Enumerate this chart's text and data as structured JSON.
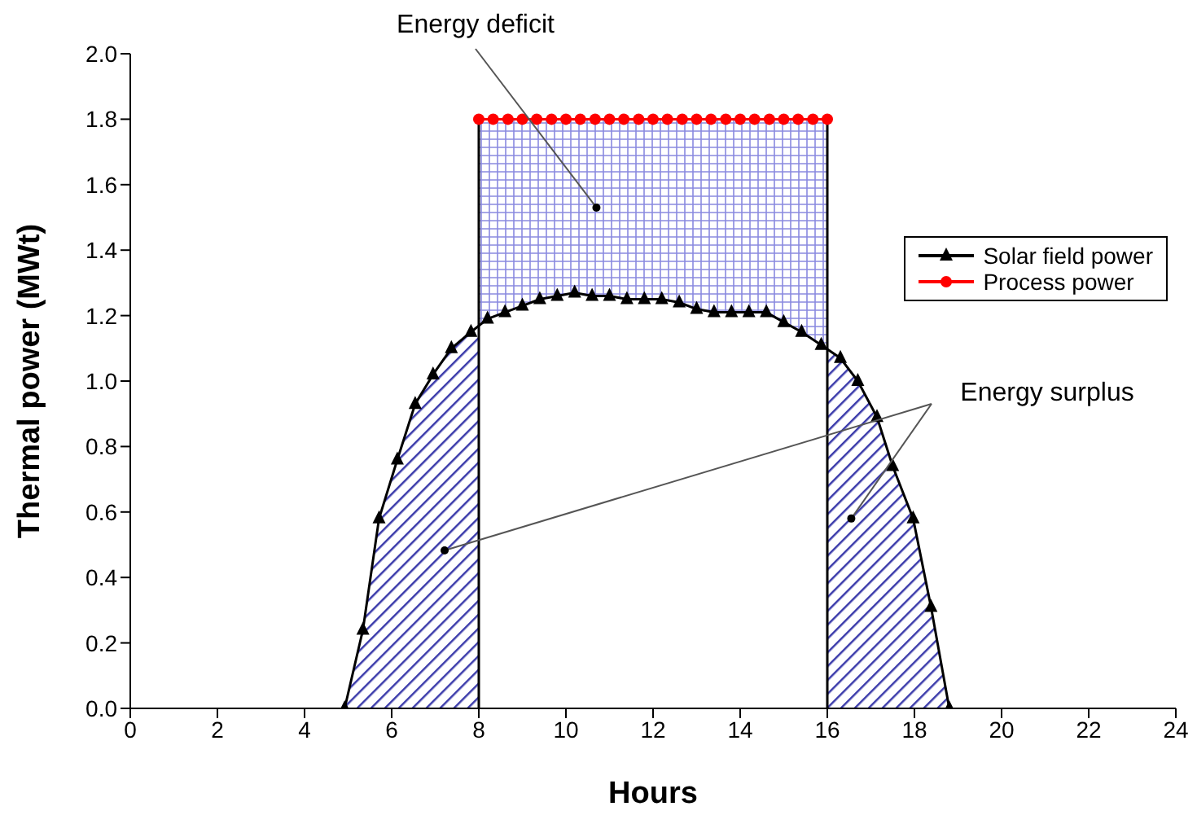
{
  "chart_data": {
    "type": "line",
    "xlabel": "Hours",
    "ylabel": "Thermal power (MWt)",
    "xlim": [
      0,
      24
    ],
    "xticks": [
      0,
      2,
      4,
      6,
      8,
      10,
      12,
      14,
      16,
      18,
      20,
      22,
      24
    ],
    "ylim": [
      0,
      2
    ],
    "yticks": [
      {
        "value": 0,
        "label": "0.0"
      },
      {
        "value": 0.2,
        "label": "0.2"
      },
      {
        "value": 0.4,
        "label": "0.4"
      },
      {
        "value": 0.6,
        "label": "0.6"
      },
      {
        "value": 0.8,
        "label": "0.8"
      },
      {
        "value": 1,
        "label": "1.0"
      },
      {
        "value": 1.2,
        "label": "1.2"
      },
      {
        "value": 1.4,
        "label": "1.4"
      },
      {
        "value": 1.6,
        "label": "1.6"
      },
      {
        "value": 1.8,
        "label": "1.8"
      },
      {
        "value": 2,
        "label": "2.0"
      }
    ],
    "grid": false,
    "legend": "right",
    "series": [
      {
        "name": "Solar field power",
        "color": "#000000",
        "marker": "triangle",
        "x": [
          4.92,
          5.34,
          5.71,
          6.13,
          6.54,
          6.95,
          7.37,
          7.82,
          8.2,
          8.6,
          9.0,
          9.4,
          9.8,
          10.2,
          10.6,
          11.0,
          11.4,
          11.8,
          12.2,
          12.6,
          13.0,
          13.4,
          13.8,
          14.2,
          14.6,
          15.0,
          15.41,
          15.86,
          16.3,
          16.7,
          17.14,
          17.5,
          17.97,
          18.38,
          18.8
        ],
        "values": [
          0,
          0.24,
          0.58,
          0.76,
          0.93,
          1.02,
          1.1,
          1.15,
          1.19,
          1.21,
          1.23,
          1.25,
          1.26,
          1.27,
          1.26,
          1.26,
          1.25,
          1.25,
          1.25,
          1.24,
          1.22,
          1.21,
          1.21,
          1.21,
          1.21,
          1.18,
          1.15,
          1.11,
          1.07,
          1.0,
          0.89,
          0.74,
          0.58,
          0.31,
          0
        ]
      },
      {
        "name": "Process power",
        "color": "#ff0000",
        "marker": "circle",
        "x": [
          8,
          8.33,
          8.67,
          9,
          9.33,
          9.67,
          10,
          10.33,
          10.67,
          11,
          11.33,
          11.67,
          12,
          12.33,
          12.67,
          13,
          13.33,
          13.67,
          14,
          14.33,
          14.67,
          15,
          15.33,
          15.67,
          16
        ],
        "values": [
          1.8,
          1.8,
          1.8,
          1.8,
          1.8,
          1.8,
          1.8,
          1.8,
          1.8,
          1.8,
          1.8,
          1.8,
          1.8,
          1.8,
          1.8,
          1.8,
          1.8,
          1.8,
          1.8,
          1.8,
          1.8,
          1.8,
          1.8,
          1.8,
          1.8
        ]
      }
    ],
    "ref_lines": [
      {
        "axis": "x",
        "value": 8,
        "color": "#000000"
      },
      {
        "axis": "x",
        "value": 16,
        "color": "#000000"
      }
    ],
    "annotations": [
      {
        "text": "Energy deficit",
        "x": 10.7,
        "y": 1.53
      },
      {
        "text": "Energy surplus",
        "x": 16.55,
        "y": 0.58
      }
    ]
  }
}
